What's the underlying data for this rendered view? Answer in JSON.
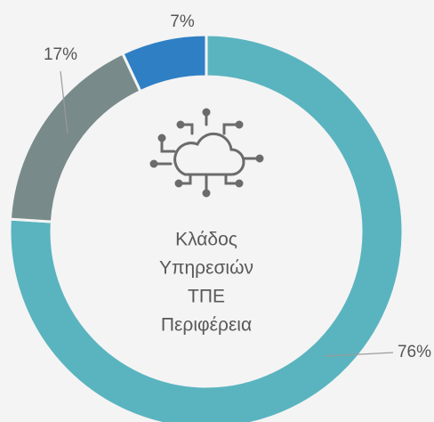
{
  "chart_data": {
    "type": "donut",
    "values": [
      76,
      17,
      7
    ],
    "value_labels": [
      "76%",
      "17%",
      "7%"
    ],
    "colors": [
      "#5ab4bf",
      "#798a8b",
      "#2f7fc4"
    ],
    "center_label": [
      "Κλάδος",
      "Υπηρεσιών",
      "ΤΠΕ",
      "Περιφέρεια"
    ]
  }
}
